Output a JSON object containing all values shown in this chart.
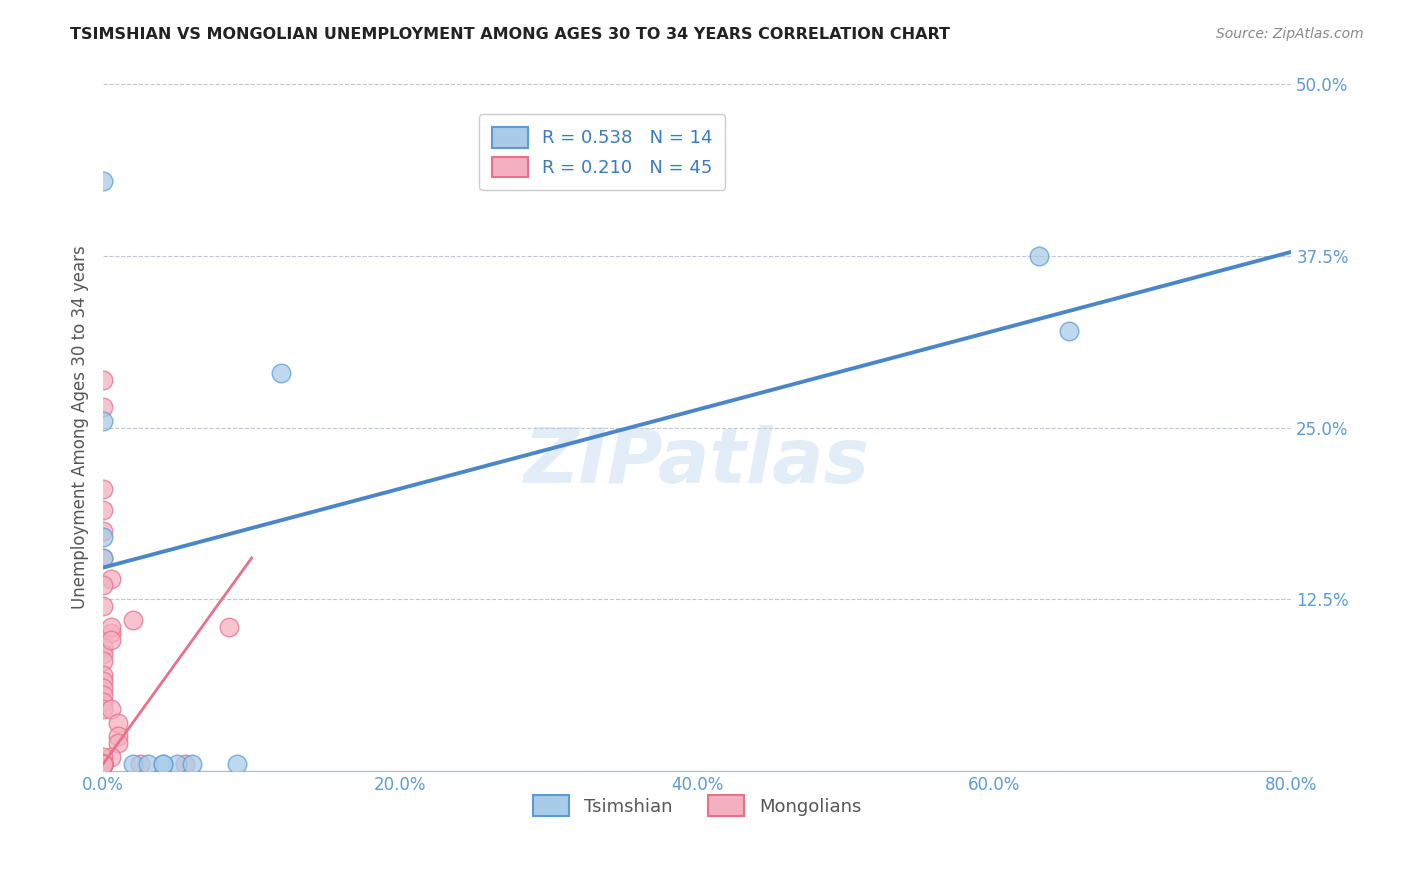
{
  "title": "TSIMSHIAN VS MONGOLIAN UNEMPLOYMENT AMONG AGES 30 TO 34 YEARS CORRELATION CHART",
  "source": "Source: ZipAtlas.com",
  "ylabel": "Unemployment Among Ages 30 to 34 years",
  "xlim": [
    0.0,
    0.8
  ],
  "ylim": [
    0.0,
    0.5
  ],
  "xticks": [
    0.0,
    0.2,
    0.4,
    0.6,
    0.8
  ],
  "xticklabels": [
    "0.0%",
    "20.0%",
    "40.0%",
    "60.0%",
    "80.0%"
  ],
  "yticks": [
    0.0,
    0.125,
    0.25,
    0.375,
    0.5
  ],
  "yticklabels": [
    "",
    "12.5%",
    "25.0%",
    "37.5%",
    "50.0%"
  ],
  "legend_labels": [
    "Tsimshian",
    "Mongolians"
  ],
  "tsimshian_R": 0.538,
  "tsimshian_N": 14,
  "mongolian_R": 0.21,
  "mongolian_N": 45,
  "tsimshian_color": "#a8cce8",
  "mongolian_color": "#f4b0c0",
  "tsimshian_edge_color": "#5b9bd5",
  "mongolian_edge_color": "#e8708a",
  "tsimshian_line_color": "#4a86c8",
  "mongolian_line_color": "#e8708a",
  "watermark": "ZIPatlas",
  "background_color": "#ffffff",
  "tsimshian_scatter": [
    [
      0.0,
      0.43
    ],
    [
      0.0,
      0.255
    ],
    [
      0.0,
      0.17
    ],
    [
      0.0,
      0.155
    ],
    [
      0.02,
      0.005
    ],
    [
      0.03,
      0.005
    ],
    [
      0.05,
      0.005
    ],
    [
      0.06,
      0.005
    ],
    [
      0.09,
      0.005
    ],
    [
      0.12,
      0.29
    ],
    [
      0.63,
      0.375
    ],
    [
      0.65,
      0.32
    ],
    [
      0.04,
      0.005
    ],
    [
      0.04,
      0.005
    ]
  ],
  "mongolian_scatter": [
    [
      0.0,
      0.285
    ],
    [
      0.0,
      0.265
    ],
    [
      0.0,
      0.205
    ],
    [
      0.0,
      0.19
    ],
    [
      0.0,
      0.175
    ],
    [
      0.0,
      0.155
    ],
    [
      0.005,
      0.14
    ],
    [
      0.0,
      0.135
    ],
    [
      0.0,
      0.12
    ],
    [
      0.005,
      0.1
    ],
    [
      0.0,
      0.09
    ],
    [
      0.0,
      0.085
    ],
    [
      0.0,
      0.08
    ],
    [
      0.0,
      0.07
    ],
    [
      0.0,
      0.065
    ],
    [
      0.0,
      0.06
    ],
    [
      0.0,
      0.055
    ],
    [
      0.0,
      0.05
    ],
    [
      0.0,
      0.045
    ],
    [
      0.005,
      0.105
    ],
    [
      0.005,
      0.095
    ],
    [
      0.005,
      0.045
    ],
    [
      0.01,
      0.035
    ],
    [
      0.01,
      0.025
    ],
    [
      0.01,
      0.02
    ],
    [
      0.005,
      0.01
    ],
    [
      0.0,
      0.01
    ],
    [
      0.0,
      0.005
    ],
    [
      0.0,
      0.005
    ],
    [
      0.0,
      0.005
    ],
    [
      0.0,
      0.005
    ],
    [
      0.0,
      0.005
    ],
    [
      0.0,
      0.005
    ],
    [
      0.0,
      0.005
    ],
    [
      0.0,
      0.005
    ],
    [
      0.0,
      0.005
    ],
    [
      0.0,
      0.005
    ],
    [
      0.0,
      0.005
    ],
    [
      0.0,
      0.005
    ],
    [
      0.0,
      0.005
    ],
    [
      0.0,
      0.005
    ],
    [
      0.02,
      0.11
    ],
    [
      0.025,
      0.005
    ],
    [
      0.055,
      0.005
    ],
    [
      0.085,
      0.105
    ]
  ],
  "tsimshian_line_x": [
    0.0,
    0.8
  ],
  "tsimshian_line_y": [
    0.148,
    0.378
  ],
  "mongolian_line_x": [
    0.0,
    0.1
  ],
  "mongolian_line_y": [
    0.005,
    0.155
  ]
}
